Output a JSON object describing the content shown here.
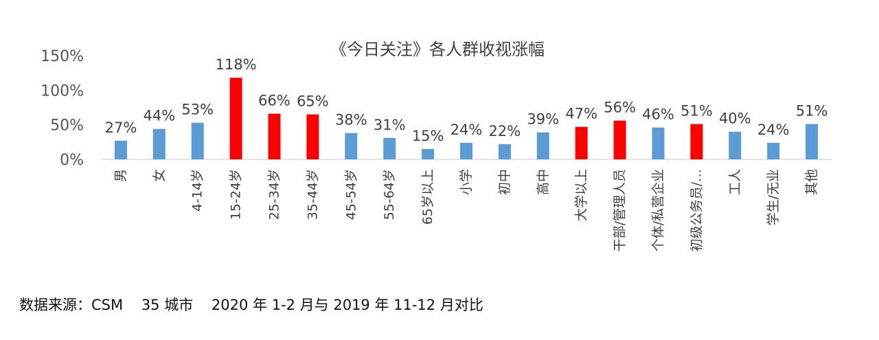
{
  "chart_data": {
    "type": "bar",
    "title": "《今日关注》各人群收视涨幅",
    "categories": [
      "男",
      "女",
      "4-14岁",
      "15-24岁",
      "25-34岁",
      "35-44岁",
      "45-54岁",
      "55-64岁",
      "65岁以上",
      "小学",
      "初中",
      "高中",
      "大学以上",
      "干部/管理人员",
      "个体/私营企业",
      "初级公务员/…",
      "工人",
      "学生/无业",
      "其他"
    ],
    "values": [
      27,
      44,
      53,
      118,
      66,
      65,
      38,
      31,
      15,
      24,
      22,
      39,
      47,
      56,
      46,
      51,
      40,
      24,
      51
    ],
    "value_labels": [
      "27%",
      "44%",
      "53%",
      "118%",
      "66%",
      "65%",
      "38%",
      "31%",
      "15%",
      "24%",
      "22%",
      "39%",
      "47%",
      "56%",
      "46%",
      "51%",
      "40%",
      "24%",
      "51%"
    ],
    "highlighted": [
      false,
      false,
      false,
      true,
      true,
      true,
      false,
      false,
      false,
      false,
      false,
      false,
      true,
      true,
      false,
      true,
      false,
      false,
      false
    ],
    "ylim": [
      0,
      150
    ],
    "yticks": [
      0,
      50,
      100,
      150
    ],
    "ytick_labels": [
      "0%",
      "50%",
      "100%",
      "150%"
    ],
    "xlabel": "",
    "ylabel": "",
    "grid": false,
    "legend": "none",
    "colors": {
      "normal": "#5b9bd5",
      "highlight": "#ff0000",
      "axis": "#d9d9d9",
      "text": "#404040"
    }
  },
  "footer": {
    "source": "数据来源：CSM    35 城市    2020 年 1-2 月与 2019 年 11-12 月对比"
  }
}
